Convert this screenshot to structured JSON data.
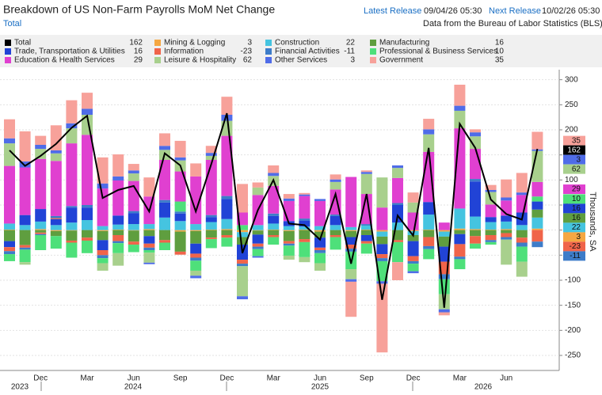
{
  "chart_data": {
    "type": "bar",
    "title": "Breakdown of US Non-Farm Payrolls MoM Net Change",
    "subtitle": "Total",
    "latest_release": {
      "label": "Latest Release",
      "value": "09/04/26 05:30"
    },
    "next_release": {
      "label": "Next Release",
      "value": "10/02/26 05:30"
    },
    "source": "Data from the Bureau of Labor Statistics (BLS)",
    "y_label": "Thousands, SA",
    "categories": [
      null,
      null,
      "Dec",
      null,
      null,
      "Mar",
      null,
      null,
      "Jun",
      null,
      null,
      "Sep",
      null,
      null,
      "Dec",
      null,
      null,
      "Mar",
      null,
      null,
      "Jun",
      null,
      null,
      "Sep",
      null,
      null,
      "Dec",
      null,
      null,
      "Mar",
      null,
      null,
      "Jun",
      null,
      null
    ],
    "years": [
      "2023",
      "2024",
      "2025",
      "2026"
    ],
    "ylim": [
      -280,
      320
    ],
    "yticks": [
      -250,
      -200,
      -150,
      -100,
      -50,
      0,
      50,
      100,
      150,
      200,
      250,
      300
    ],
    "grid": true,
    "series": [
      {
        "name": "Total",
        "type": "line",
        "color": "#000000",
        "values": [
          159,
          128,
          148,
          172,
          204,
          228,
          64,
          80,
          88,
          37,
          153,
          129,
          37,
          132,
          233,
          -46,
          40,
          100,
          13,
          10,
          -19,
          72,
          -67,
          72,
          -139,
          29,
          -11,
          164,
          -155,
          212,
          164,
          61,
          32,
          21,
          162
        ]
      },
      {
        "name": "Mining & Logging",
        "color": "#f5a742",
        "values": [
          1,
          0,
          2,
          -2,
          -1,
          0,
          -2,
          1,
          -1,
          2,
          0,
          -3,
          -2,
          1,
          2,
          -4,
          -1,
          1,
          -2,
          1,
          -3,
          0,
          -2,
          1,
          -3,
          0,
          -2,
          1,
          -3,
          3,
          2,
          1,
          2,
          0,
          3
        ]
      },
      {
        "name": "Construction",
        "color": "#45c4e0",
        "values": [
          12,
          10,
          15,
          10,
          15,
          20,
          8,
          10,
          12,
          10,
          25,
          18,
          12,
          15,
          20,
          -10,
          10,
          12,
          8,
          6,
          8,
          10,
          6,
          8,
          -10,
          15,
          -8,
          30,
          -10,
          40,
          25,
          15,
          15,
          10,
          22
        ]
      },
      {
        "name": "Manufacturing",
        "color": "#5f9e3f",
        "values": [
          -22,
          -30,
          -5,
          -10,
          -20,
          -15,
          -18,
          -10,
          -22,
          -12,
          -20,
          -40,
          -25,
          -15,
          -10,
          -15,
          -8,
          -10,
          -20,
          -18,
          -12,
          -10,
          -12,
          -10,
          -15,
          -20,
          -12,
          -14,
          -20,
          -8,
          -12,
          -10,
          -6,
          -15,
          16
        ]
      },
      {
        "name": "Trade, Transportation & Utilities",
        "color": "#2143d6",
        "values": [
          -12,
          20,
          25,
          12,
          30,
          25,
          -20,
          18,
          22,
          -15,
          30,
          15,
          -20,
          10,
          40,
          -30,
          -18,
          15,
          10,
          12,
          -20,
          18,
          -15,
          -12,
          -20,
          35,
          -30,
          25,
          -30,
          -20,
          70,
          10,
          12,
          25,
          16
        ]
      },
      {
        "name": "Information",
        "color": "#f0644a",
        "values": [
          -8,
          -5,
          -3,
          2,
          -4,
          -6,
          -10,
          -12,
          -6,
          -8,
          -5,
          -6,
          -8,
          -3,
          -5,
          -8,
          -6,
          -4,
          -5,
          -6,
          -5,
          -4,
          -8,
          -5,
          -8,
          -4,
          -10,
          -18,
          -25,
          -25,
          -15,
          -10,
          -8,
          -10,
          -23
        ]
      },
      {
        "name": "Financial Activities",
        "color": "#3d7cc9",
        "values": [
          -6,
          -4,
          -2,
          4,
          3,
          5,
          -6,
          -4,
          4,
          -5,
          5,
          4,
          -6,
          4,
          6,
          -5,
          -5,
          5,
          -4,
          4,
          -6,
          3,
          -6,
          3,
          -6,
          4,
          -5,
          -6,
          -10,
          -5,
          5,
          -4,
          -5,
          -8,
          -11
        ]
      },
      {
        "name": "Professional & Business Services",
        "color": "#4ee07a",
        "values": [
          -14,
          -25,
          -30,
          -25,
          -30,
          -25,
          -10,
          -20,
          -15,
          -5,
          -15,
          20,
          -20,
          -18,
          -18,
          10,
          -14,
          -15,
          -20,
          -30,
          -20,
          -25,
          -35,
          -20,
          -40,
          -40,
          -15,
          -20,
          -30,
          -20,
          -10,
          -5,
          0,
          -30,
          10
        ]
      },
      {
        "name": "Education & Health Services",
        "color": "#e040d0",
        "values": [
          115,
          95,
          100,
          110,
          125,
          140,
          75,
          70,
          60,
          55,
          80,
          60,
          95,
          110,
          120,
          25,
          60,
          55,
          40,
          45,
          50,
          50,
          100,
          60,
          45,
          50,
          35,
          100,
          15,
          160,
          60,
          25,
          30,
          35,
          29
        ]
      },
      {
        "name": "Leisure & Hospitality",
        "color": "#a8d08d",
        "values": [
          45,
          -5,
          20,
          15,
          30,
          40,
          -15,
          -25,
          15,
          -20,
          20,
          22,
          -10,
          8,
          30,
          -60,
          15,
          20,
          -8,
          -10,
          -15,
          15,
          -20,
          40,
          60,
          20,
          20,
          35,
          -30,
          35,
          25,
          25,
          -50,
          -30,
          62
        ]
      },
      {
        "name": "Other Services",
        "color": "#4f6ce8",
        "values": [
          10,
          12,
          8,
          6,
          10,
          12,
          10,
          8,
          6,
          -3,
          8,
          6,
          -5,
          6,
          12,
          -6,
          -3,
          6,
          5,
          3,
          4,
          5,
          -5,
          4,
          -5,
          5,
          -4,
          10,
          -6,
          10,
          8,
          4,
          6,
          5,
          3
        ]
      },
      {
        "name": "Government",
        "color": "#f7a19a",
        "values": [
          38,
          60,
          18,
          50,
          46,
          32,
          52,
          44,
          13,
          38,
          25,
          33,
          26,
          14,
          36,
          57,
          10,
          15,
          9,
          3,
          0,
          10,
          -70,
          3,
          -137,
          -36,
          20,
          21,
          -6,
          42,
          6,
          10,
          36,
          39,
          35
        ]
      }
    ]
  }
}
